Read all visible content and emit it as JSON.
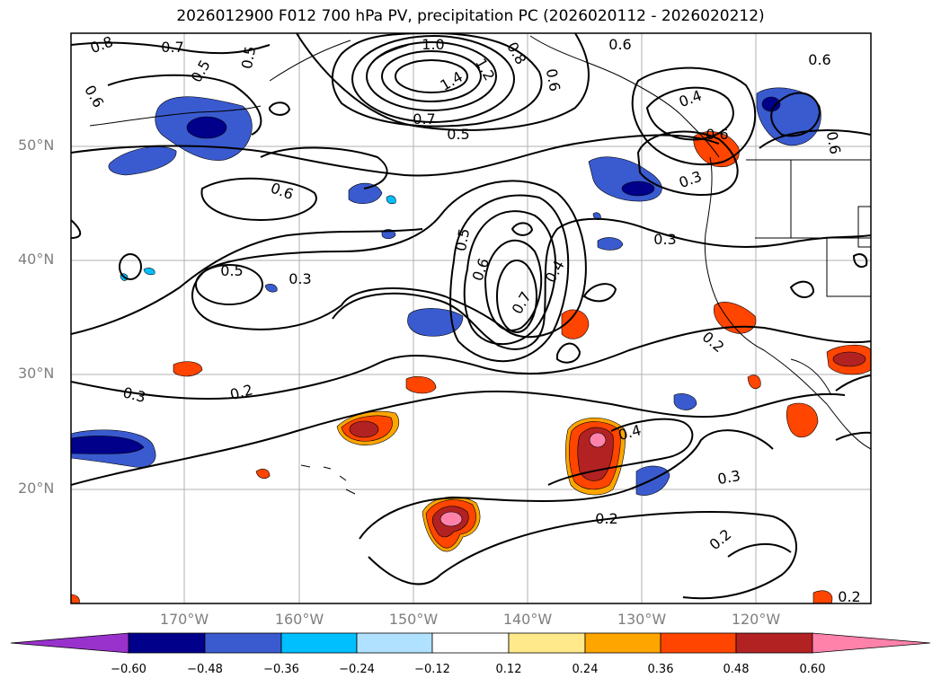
{
  "title": "2026012900 F012 700 hPa PV, precipitation PC (2026020112 - 2026020212)",
  "lat_labels": [
    "50°N",
    "40°N",
    "30°N",
    "20°N"
  ],
  "lon_labels": [
    "170°W",
    "160°W",
    "150°W",
    "140°W",
    "130°W",
    "120°W"
  ],
  "colorbar": {
    "ticks": [
      "−0.60",
      "−0.48",
      "−0.36",
      "−0.24",
      "−0.12",
      "0.12",
      "0.24",
      "0.36",
      "0.48",
      "0.60"
    ],
    "colors": [
      "#9932cc",
      "#00008b",
      "#3a5bcf",
      "#00bfff",
      "#b0e2ff",
      "#ffffff",
      "#ffe98a",
      "#ffa500",
      "#ff4500",
      "#b22222",
      "#ff82ab"
    ]
  },
  "contour_labels": [
    "0.8",
    "0.7",
    "0.5",
    "1.0",
    "1.2",
    "1.4",
    "0.8",
    "0.6",
    "0.6",
    "0.5",
    "0.6",
    "0.4",
    "0.6",
    "0.6",
    "0.7",
    "0.5",
    "0.6",
    "0.5",
    "0.3",
    "0.5",
    "0.6",
    "0.7",
    "0.4",
    "0.6",
    "0.3",
    "0.3",
    "0.2",
    "0.3",
    "0.2",
    "0.4",
    "0.3",
    "0.2",
    "0.2",
    "0.2"
  ]
}
